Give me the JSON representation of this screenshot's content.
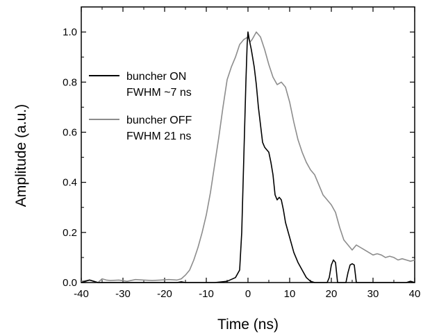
{
  "chart_data": {
    "type": "line",
    "xlabel": "Time (ns)",
    "ylabel": "Amplitude (a.u.)",
    "xlim": [
      -40,
      40
    ],
    "ylim": [
      0,
      1.1
    ],
    "x_ticks": [
      -40,
      -30,
      -20,
      -10,
      0,
      10,
      20,
      30,
      40
    ],
    "x_tick_labels": [
      "-40",
      "-30",
      "-20",
      "-10",
      "0",
      "10",
      "20",
      "30",
      "40"
    ],
    "y_ticks": [
      0.0,
      0.2,
      0.4,
      0.6,
      0.8,
      1.0
    ],
    "y_tick_labels": [
      "0.0",
      "0.2",
      "0.4",
      "0.6",
      "0.8",
      "1.0"
    ],
    "grid": false,
    "legend_position": "upper-left",
    "series": [
      {
        "name": "buncher ON",
        "legend_line2": "FWHM ~7 ns",
        "color": "#000000",
        "points": [
          [
            -40,
            0.0
          ],
          [
            -38,
            0.01
          ],
          [
            -36,
            0.0
          ],
          [
            -20,
            0.0
          ],
          [
            -17,
            0.0
          ],
          [
            -16,
            0.003
          ],
          [
            -15,
            0.0
          ],
          [
            -8,
            0.0
          ],
          [
            -5,
            0.005
          ],
          [
            -3,
            0.02
          ],
          [
            -2,
            0.05
          ],
          [
            -1.5,
            0.2
          ],
          [
            -1,
            0.5
          ],
          [
            -0.5,
            0.8
          ],
          [
            -0.2,
            0.95
          ],
          [
            0,
            1.0
          ],
          [
            0.3,
            0.97
          ],
          [
            0.8,
            0.93
          ],
          [
            1.5,
            0.86
          ],
          [
            2,
            0.79
          ],
          [
            2.5,
            0.7
          ],
          [
            3,
            0.63
          ],
          [
            3.5,
            0.56
          ],
          [
            4,
            0.54
          ],
          [
            4.5,
            0.53
          ],
          [
            5,
            0.52
          ],
          [
            5.5,
            0.48
          ],
          [
            6,
            0.43
          ],
          [
            6.5,
            0.35
          ],
          [
            7,
            0.33
          ],
          [
            7.5,
            0.34
          ],
          [
            8,
            0.33
          ],
          [
            8.5,
            0.29
          ],
          [
            9,
            0.24
          ],
          [
            10,
            0.18
          ],
          [
            11,
            0.12
          ],
          [
            12,
            0.08
          ],
          [
            13,
            0.05
          ],
          [
            14,
            0.02
          ],
          [
            15,
            0.005
          ],
          [
            16,
            0.0
          ],
          [
            19,
            0.0
          ],
          [
            19.5,
            0.02
          ],
          [
            20,
            0.07
          ],
          [
            20.5,
            0.09
          ],
          [
            21,
            0.08
          ],
          [
            21.5,
            0.0
          ],
          [
            23.5,
            0.0
          ],
          [
            24,
            0.04
          ],
          [
            24.5,
            0.07
          ],
          [
            25,
            0.075
          ],
          [
            25.5,
            0.07
          ],
          [
            26,
            0.0
          ],
          [
            38,
            0.0
          ],
          [
            39,
            0.005
          ],
          [
            40,
            0.0
          ]
        ]
      },
      {
        "name": "buncher OFF",
        "legend_line2": "FWHM 21 ns",
        "color": "#8c8c8c",
        "points": [
          [
            -40,
            0.005
          ],
          [
            -38,
            0.01
          ],
          [
            -37,
            0.005
          ],
          [
            -36,
            0.0
          ],
          [
            -35,
            0.015
          ],
          [
            -34,
            0.01
          ],
          [
            -33,
            0.008
          ],
          [
            -31,
            0.01
          ],
          [
            -29,
            0.005
          ],
          [
            -27,
            0.012
          ],
          [
            -25,
            0.01
          ],
          [
            -23,
            0.008
          ],
          [
            -21,
            0.01
          ],
          [
            -19,
            0.012
          ],
          [
            -17,
            0.01
          ],
          [
            -16,
            0.015
          ],
          [
            -15,
            0.03
          ],
          [
            -14,
            0.05
          ],
          [
            -13,
            0.09
          ],
          [
            -12,
            0.14
          ],
          [
            -11,
            0.2
          ],
          [
            -10,
            0.27
          ],
          [
            -9,
            0.36
          ],
          [
            -8,
            0.47
          ],
          [
            -7,
            0.58
          ],
          [
            -6,
            0.7
          ],
          [
            -5,
            0.81
          ],
          [
            -4,
            0.86
          ],
          [
            -3,
            0.9
          ],
          [
            -2,
            0.95
          ],
          [
            -1,
            0.97
          ],
          [
            0,
            0.98
          ],
          [
            0.5,
            0.96
          ],
          [
            1,
            0.97
          ],
          [
            2,
            1.0
          ],
          [
            3,
            0.98
          ],
          [
            4,
            0.93
          ],
          [
            5,
            0.87
          ],
          [
            6,
            0.82
          ],
          [
            7,
            0.79
          ],
          [
            8,
            0.8
          ],
          [
            9,
            0.78
          ],
          [
            10,
            0.72
          ],
          [
            11,
            0.64
          ],
          [
            12,
            0.57
          ],
          [
            13,
            0.52
          ],
          [
            14,
            0.48
          ],
          [
            15,
            0.45
          ],
          [
            16,
            0.43
          ],
          [
            17,
            0.39
          ],
          [
            18,
            0.35
          ],
          [
            19,
            0.33
          ],
          [
            20,
            0.31
          ],
          [
            21,
            0.28
          ],
          [
            22,
            0.22
          ],
          [
            23,
            0.17
          ],
          [
            24,
            0.15
          ],
          [
            25,
            0.13
          ],
          [
            26,
            0.15
          ],
          [
            27,
            0.14
          ],
          [
            28,
            0.13
          ],
          [
            29,
            0.12
          ],
          [
            30,
            0.11
          ],
          [
            31,
            0.115
          ],
          [
            32,
            0.11
          ],
          [
            33,
            0.1
          ],
          [
            34,
            0.105
          ],
          [
            35,
            0.1
          ],
          [
            36,
            0.09
          ],
          [
            37,
            0.095
          ],
          [
            38,
            0.09
          ],
          [
            39,
            0.085
          ],
          [
            40,
            0.09
          ]
        ]
      }
    ]
  }
}
